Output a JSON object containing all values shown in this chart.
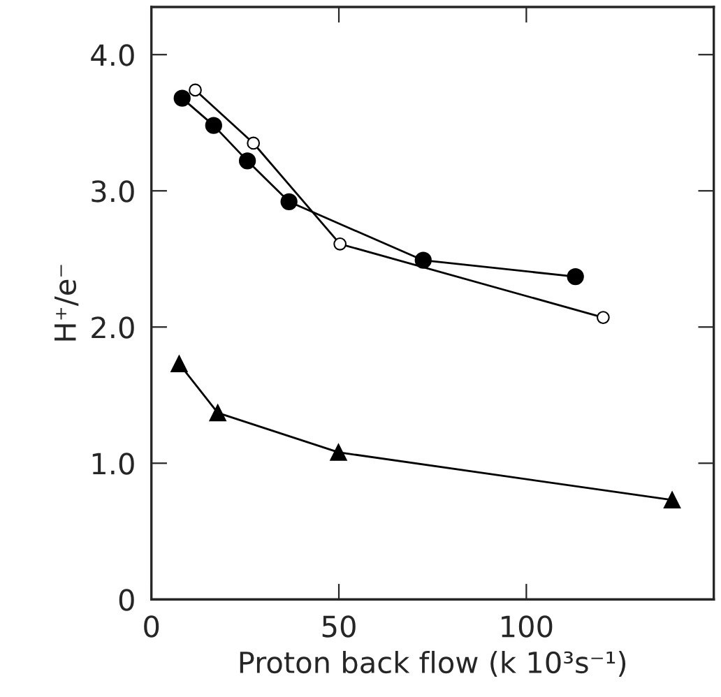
{
  "chart_data": {
    "type": "line",
    "xlabel": "Proton back flow (k 10³s⁻¹)",
    "ylabel": "H⁺/e⁻",
    "xlim": [
      0,
      150
    ],
    "ylim": [
      0,
      4.35
    ],
    "xticks": [
      0,
      50,
      100
    ],
    "yticks": [
      0,
      {
        "value": 1,
        "label": "1.0"
      },
      {
        "value": 2,
        "label": "2.0"
      },
      {
        "value": 3,
        "label": "3.0"
      },
      {
        "value": 4,
        "label": "4.0"
      }
    ],
    "grid": false,
    "legend": false,
    "line_style": "solid",
    "series": [
      {
        "color": "#000000",
        "marker": "circle",
        "x": [
          8.2,
          16.6,
          25.6,
          36.7,
          72.5,
          113.1
        ],
        "values": [
          3.68,
          3.48,
          3.22,
          2.92,
          2.49,
          2.37
        ]
      },
      {
        "color": "#000000",
        "marker": "open_circle",
        "x": [
          11.7,
          27.2,
          50.3,
          120.5
        ],
        "values": [
          3.74,
          3.35,
          2.61,
          2.07
        ]
      },
      {
        "color": "#000000",
        "marker": "triangle",
        "x": [
          7.4,
          17.7,
          49.9,
          138.9
        ],
        "values": [
          1.73,
          1.37,
          1.08,
          0.73
        ]
      }
    ]
  }
}
